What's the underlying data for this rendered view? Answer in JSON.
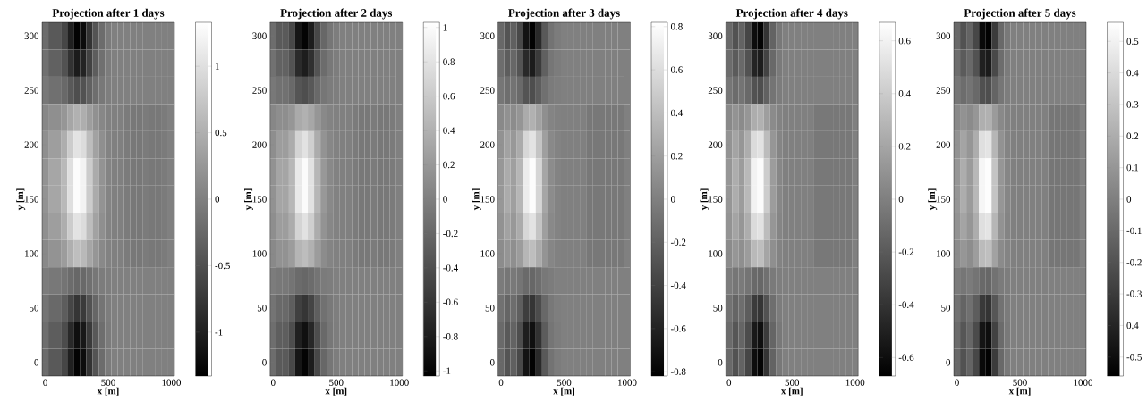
{
  "chart_data": [
    {
      "type": "heatmap",
      "title": "Projection after 1 days",
      "xlabel": "x [m]",
      "ylabel": "y [m]",
      "categories": [
        "0",
        null,
        null,
        null,
        null,
        null,
        null,
        null,
        null,
        null,
        "500",
        null,
        null,
        null,
        null,
        null,
        null,
        null,
        null,
        null,
        "1000"
      ],
      "y_categories": [
        "300",
        null,
        "250",
        null,
        "200",
        null,
        "150",
        null,
        "100",
        null,
        "50",
        null,
        "0"
      ],
      "cells": [
        [
          -0.2,
          -0.4,
          -0.4,
          -0.6,
          -1.0,
          -1.3,
          -1.2,
          -0.8,
          -0.45,
          -0.2,
          -0.05,
          0,
          0,
          0,
          0,
          0,
          0,
          0,
          0,
          0,
          0
        ],
        [
          -0.16,
          -0.32,
          -0.32,
          -0.48,
          -0.8,
          -1.04,
          -0.96,
          -0.64,
          -0.36,
          -0.16,
          -0.04,
          0,
          0,
          0,
          0,
          0,
          0,
          0,
          0,
          0,
          0
        ],
        [
          -0.08,
          -0.16,
          -0.16,
          -0.24,
          -0.4,
          -0.52,
          -0.48,
          -0.32,
          -0.18,
          -0.08,
          -0.02,
          0,
          0,
          0,
          0,
          0,
          0,
          0,
          0,
          0,
          0
        ],
        [
          0.08,
          0.16,
          0.16,
          0.24,
          0.4,
          0.52,
          0.48,
          0.32,
          0.18,
          0.08,
          0.02,
          0,
          0,
          -0.05,
          -0.08,
          -0.08,
          -0.05,
          -0.08,
          -0.08,
          -0.05,
          0
        ],
        [
          0.16,
          0.32,
          0.32,
          0.48,
          0.8,
          1.04,
          0.96,
          0.64,
          0.36,
          0.16,
          0.04,
          0,
          0,
          -0.05,
          -0.08,
          -0.08,
          -0.05,
          -0.08,
          -0.08,
          -0.05,
          0
        ],
        [
          0.2,
          0.4,
          0.4,
          0.6,
          1.0,
          1.3,
          1.2,
          0.8,
          0.45,
          0.2,
          0.05,
          0,
          0,
          -0.05,
          -0.08,
          -0.08,
          -0.05,
          -0.08,
          -0.08,
          -0.05,
          0
        ],
        [
          0.2,
          0.4,
          0.4,
          0.6,
          1.0,
          1.3,
          1.2,
          0.8,
          0.45,
          0.2,
          0.05,
          0,
          0,
          -0.05,
          -0.08,
          -0.08,
          -0.05,
          -0.08,
          -0.08,
          -0.05,
          0
        ],
        [
          0.16,
          0.32,
          0.32,
          0.48,
          0.8,
          1.04,
          0.96,
          0.64,
          0.36,
          0.16,
          0.04,
          0,
          0,
          -0.05,
          -0.08,
          -0.08,
          -0.05,
          -0.08,
          -0.08,
          -0.05,
          0
        ],
        [
          0.1,
          0.2,
          0.2,
          0.3,
          0.5,
          0.65,
          0.6,
          0.4,
          0.23,
          0.1,
          0.03,
          0,
          0,
          -0.05,
          -0.08,
          -0.08,
          -0.05,
          -0.08,
          -0.08,
          -0.05,
          0
        ],
        [
          -0.04,
          -0.08,
          -0.08,
          -0.12,
          -0.2,
          -0.26,
          -0.24,
          -0.16,
          -0.09,
          -0.04,
          -0.01,
          0,
          0,
          0,
          0,
          0,
          0,
          0,
          0,
          0,
          0
        ],
        [
          -0.12,
          -0.24,
          -0.24,
          -0.36,
          -0.6,
          -0.78,
          -0.72,
          -0.48,
          -0.27,
          -0.12,
          -0.03,
          0,
          0,
          0,
          0,
          0,
          0,
          0,
          0,
          0,
          0
        ],
        [
          -0.18,
          -0.36,
          -0.36,
          -0.54,
          -0.9,
          -1.17,
          -1.08,
          -0.72,
          -0.41,
          -0.18,
          -0.05,
          0,
          0,
          0,
          0,
          0,
          0,
          0,
          0,
          0,
          0
        ],
        [
          -0.2,
          -0.4,
          -0.4,
          -0.6,
          -1.0,
          -1.3,
          -1.2,
          -0.8,
          -0.45,
          -0.2,
          -0.05,
          0,
          0,
          0,
          0,
          0,
          0,
          0,
          0,
          0,
          0
        ]
      ],
      "clim": [
        -1.33,
        1.33
      ],
      "cticks": [
        -1,
        -0.5,
        0,
        0.5,
        1
      ]
    },
    {
      "type": "heatmap",
      "title": "Projection after 2 days",
      "xlabel": "x [m]",
      "ylabel": "y [m]",
      "categories": [
        "0",
        null,
        null,
        null,
        null,
        null,
        null,
        null,
        null,
        null,
        "500",
        null,
        null,
        null,
        null,
        null,
        null,
        null,
        null,
        null,
        "1000"
      ],
      "y_categories": [
        "300",
        null,
        "250",
        null,
        "200",
        null,
        "150",
        null,
        "100",
        null,
        "50",
        null,
        "0"
      ],
      "cells": [
        [
          -0.15,
          -0.3,
          -0.3,
          -0.45,
          -0.85,
          -1.0,
          -0.8,
          -0.45,
          -0.2,
          -0.08,
          -0.02,
          0,
          0,
          0,
          0,
          0,
          0,
          0,
          0,
          0,
          0
        ],
        [
          -0.12,
          -0.24,
          -0.24,
          -0.36,
          -0.68,
          -0.8,
          -0.64,
          -0.36,
          -0.16,
          -0.06,
          -0.02,
          0,
          0,
          0,
          0,
          0,
          0,
          0,
          0,
          0,
          0
        ],
        [
          -0.06,
          -0.12,
          -0.12,
          -0.18,
          -0.34,
          -0.4,
          -0.32,
          -0.18,
          -0.08,
          -0.03,
          -0.01,
          0,
          0,
          0,
          0,
          0,
          0,
          0,
          0,
          0,
          0
        ],
        [
          0.06,
          0.12,
          0.12,
          0.18,
          0.34,
          0.4,
          0.32,
          0.18,
          0.08,
          0.03,
          0.01,
          0,
          0,
          -0.04,
          -0.06,
          -0.06,
          -0.04,
          -0.06,
          -0.06,
          -0.04,
          0
        ],
        [
          0.12,
          0.24,
          0.24,
          0.36,
          0.68,
          0.8,
          0.64,
          0.36,
          0.16,
          0.06,
          0.02,
          0,
          0,
          -0.04,
          -0.06,
          -0.06,
          -0.04,
          -0.06,
          -0.06,
          -0.04,
          0
        ],
        [
          0.15,
          0.3,
          0.3,
          0.45,
          0.85,
          1.0,
          0.8,
          0.45,
          0.2,
          0.08,
          0.02,
          0,
          0,
          -0.04,
          -0.06,
          -0.06,
          -0.04,
          -0.06,
          -0.06,
          -0.04,
          0
        ],
        [
          0.15,
          0.3,
          0.3,
          0.45,
          0.85,
          1.0,
          0.8,
          0.45,
          0.2,
          0.08,
          0.02,
          0,
          0,
          -0.04,
          -0.06,
          -0.06,
          -0.04,
          -0.06,
          -0.06,
          -0.04,
          0
        ],
        [
          0.12,
          0.24,
          0.24,
          0.36,
          0.68,
          0.8,
          0.64,
          0.36,
          0.16,
          0.06,
          0.02,
          0,
          0,
          -0.04,
          -0.06,
          -0.06,
          -0.04,
          -0.06,
          -0.06,
          -0.04,
          0
        ],
        [
          0.08,
          0.15,
          0.15,
          0.23,
          0.43,
          0.5,
          0.4,
          0.23,
          0.1,
          0.04,
          0.01,
          0,
          0,
          -0.04,
          -0.06,
          -0.06,
          -0.04,
          -0.06,
          -0.06,
          -0.04,
          0
        ],
        [
          -0.03,
          -0.06,
          -0.06,
          -0.09,
          -0.17,
          -0.2,
          -0.16,
          -0.09,
          -0.04,
          -0.02,
          0,
          0,
          0,
          0,
          0,
          0,
          0,
          0,
          0,
          0,
          0
        ],
        [
          -0.09,
          -0.18,
          -0.18,
          -0.27,
          -0.51,
          -0.6,
          -0.48,
          -0.27,
          -0.12,
          -0.05,
          -0.01,
          0,
          0,
          0,
          0,
          0,
          0,
          0,
          0,
          0,
          0
        ],
        [
          -0.14,
          -0.27,
          -0.27,
          -0.41,
          -0.77,
          -0.9,
          -0.72,
          -0.41,
          -0.18,
          -0.07,
          -0.02,
          0,
          0,
          0,
          0,
          0,
          0,
          0,
          0,
          0,
          0
        ],
        [
          -0.15,
          -0.3,
          -0.3,
          -0.45,
          -0.85,
          -1.0,
          -0.8,
          -0.45,
          -0.2,
          -0.08,
          -0.02,
          0,
          0,
          0,
          0,
          0,
          0,
          0,
          0,
          0,
          0
        ]
      ],
      "clim": [
        -1.03,
        1.03
      ],
      "cticks": [
        -1,
        -0.8,
        -0.6,
        -0.4,
        -0.2,
        0,
        0.2,
        0.4,
        0.6,
        0.8,
        1
      ]
    },
    {
      "type": "heatmap",
      "title": "Projection after 3 days",
      "xlabel": "x [m]",
      "ylabel": "y [m]",
      "categories": [
        "0",
        null,
        null,
        null,
        null,
        null,
        null,
        null,
        null,
        null,
        "500",
        null,
        null,
        null,
        null,
        null,
        null,
        null,
        null,
        null,
        "1000"
      ],
      "y_categories": [
        "300",
        null,
        "250",
        null,
        "200",
        null,
        "150",
        null,
        "100",
        null,
        "50",
        null,
        "0"
      ],
      "cells": [
        [
          -0.15,
          -0.28,
          -0.2,
          -0.35,
          -0.7,
          -0.8,
          -0.55,
          -0.25,
          -0.08,
          -0.02,
          0,
          0,
          0,
          0,
          0,
          0,
          0,
          0,
          0,
          0,
          0
        ],
        [
          -0.12,
          -0.22,
          -0.16,
          -0.28,
          -0.56,
          -0.64,
          -0.44,
          -0.2,
          -0.06,
          -0.02,
          0,
          0,
          0,
          0,
          0,
          0,
          0,
          0,
          0,
          0,
          0
        ],
        [
          -0.06,
          -0.11,
          -0.08,
          -0.14,
          -0.28,
          -0.32,
          -0.22,
          -0.1,
          -0.03,
          -0.01,
          0,
          0,
          0,
          0,
          0,
          0,
          0,
          0,
          0,
          0,
          0
        ],
        [
          0.06,
          0.11,
          0.08,
          0.14,
          0.28,
          0.32,
          0.22,
          0.1,
          0.03,
          0.01,
          0,
          0,
          0,
          0,
          -0.05,
          -0.05,
          -0.05,
          -0.05,
          -0.05,
          -0.05,
          0
        ],
        [
          0.12,
          0.22,
          0.16,
          0.28,
          0.56,
          0.64,
          0.44,
          0.2,
          0.06,
          0.02,
          0,
          0,
          0,
          0,
          -0.05,
          -0.05,
          -0.05,
          -0.05,
          -0.05,
          -0.05,
          0
        ],
        [
          0.15,
          0.28,
          0.2,
          0.35,
          0.7,
          0.8,
          0.55,
          0.25,
          0.08,
          0.02,
          0,
          0,
          0,
          0,
          -0.05,
          -0.05,
          -0.05,
          -0.05,
          -0.05,
          -0.05,
          0
        ],
        [
          0.15,
          0.28,
          0.2,
          0.35,
          0.7,
          0.8,
          0.55,
          0.25,
          0.08,
          0.02,
          0,
          0,
          0,
          0,
          -0.05,
          -0.05,
          -0.05,
          -0.05,
          -0.05,
          -0.05,
          0
        ],
        [
          0.12,
          0.22,
          0.16,
          0.28,
          0.56,
          0.64,
          0.44,
          0.2,
          0.06,
          0.02,
          0,
          0,
          0,
          0,
          -0.05,
          -0.05,
          -0.05,
          -0.05,
          -0.05,
          -0.05,
          0
        ],
        [
          0.08,
          0.14,
          0.1,
          0.18,
          0.35,
          0.4,
          0.28,
          0.13,
          0.04,
          0.01,
          0,
          0,
          0,
          0,
          -0.05,
          -0.05,
          -0.05,
          -0.05,
          -0.05,
          -0.05,
          0
        ],
        [
          -0.03,
          -0.06,
          -0.04,
          -0.07,
          -0.14,
          -0.16,
          -0.11,
          -0.05,
          -0.02,
          0,
          0,
          0,
          0,
          0,
          0,
          0,
          0,
          0,
          0,
          0,
          0
        ],
        [
          -0.09,
          -0.17,
          -0.12,
          -0.21,
          -0.42,
          -0.48,
          -0.33,
          -0.15,
          -0.05,
          -0.01,
          0,
          0,
          0,
          0,
          0,
          0,
          0,
          0,
          0,
          0,
          0
        ],
        [
          -0.14,
          -0.25,
          -0.18,
          -0.32,
          -0.63,
          -0.72,
          -0.5,
          -0.23,
          -0.07,
          -0.02,
          0,
          0,
          0,
          0,
          0,
          0,
          0,
          0,
          0,
          0,
          0
        ],
        [
          -0.15,
          -0.28,
          -0.2,
          -0.35,
          -0.7,
          -0.8,
          -0.55,
          -0.25,
          -0.08,
          -0.02,
          0,
          0,
          0,
          0,
          0,
          0,
          0,
          0,
          0,
          0,
          0
        ]
      ],
      "clim": [
        -0.82,
        0.82
      ],
      "cticks": [
        -0.8,
        -0.6,
        -0.4,
        -0.2,
        0,
        0.2,
        0.4,
        0.6,
        0.8
      ]
    },
    {
      "type": "heatmap",
      "title": "Projection after 4 days",
      "xlabel": "x [m]",
      "ylabel": "y [m]",
      "categories": [
        "0",
        null,
        null,
        null,
        null,
        null,
        null,
        null,
        null,
        null,
        "500",
        null,
        null,
        null,
        null,
        null,
        null,
        null,
        null,
        null,
        "1000"
      ],
      "y_categories": [
        "300",
        null,
        "250",
        null,
        "200",
        null,
        "150",
        null,
        "100",
        null,
        "50",
        null,
        "0"
      ],
      "cells": [
        [
          -0.12,
          -0.24,
          -0.15,
          -0.3,
          -0.6,
          -0.65,
          -0.4,
          -0.15,
          -0.04,
          0,
          0,
          0,
          0,
          0,
          0,
          0,
          0,
          0,
          0,
          0,
          0
        ],
        [
          -0.1,
          -0.19,
          -0.12,
          -0.24,
          -0.48,
          -0.52,
          -0.32,
          -0.12,
          -0.03,
          0,
          0,
          0,
          0,
          0,
          0,
          0,
          0,
          0,
          0,
          0,
          0
        ],
        [
          -0.05,
          -0.1,
          -0.06,
          -0.12,
          -0.24,
          -0.26,
          -0.16,
          -0.06,
          -0.02,
          0,
          0,
          0,
          0,
          0,
          0,
          0,
          0,
          0,
          0,
          0,
          0
        ],
        [
          0.05,
          0.1,
          0.06,
          0.12,
          0.24,
          0.26,
          0.16,
          0.06,
          0.02,
          0,
          0,
          0,
          0,
          0,
          -0.04,
          -0.04,
          -0.04,
          -0.04,
          -0.04,
          -0.04,
          0
        ],
        [
          0.1,
          0.19,
          0.12,
          0.24,
          0.48,
          0.52,
          0.32,
          0.12,
          0.03,
          0,
          0,
          0,
          0,
          0,
          -0.04,
          -0.04,
          -0.04,
          -0.04,
          -0.04,
          -0.04,
          0
        ],
        [
          0.12,
          0.24,
          0.15,
          0.3,
          0.6,
          0.65,
          0.4,
          0.15,
          0.04,
          0,
          0,
          0,
          0,
          0,
          -0.04,
          -0.04,
          -0.04,
          -0.04,
          -0.04,
          -0.04,
          0
        ],
        [
          0.12,
          0.24,
          0.15,
          0.3,
          0.6,
          0.65,
          0.4,
          0.15,
          0.04,
          0,
          0,
          0,
          0,
          0,
          -0.04,
          -0.04,
          -0.04,
          -0.04,
          -0.04,
          -0.04,
          0
        ],
        [
          0.1,
          0.19,
          0.12,
          0.24,
          0.48,
          0.52,
          0.32,
          0.12,
          0.03,
          0,
          0,
          0,
          0,
          0,
          -0.04,
          -0.04,
          -0.04,
          -0.04,
          -0.04,
          -0.04,
          0
        ],
        [
          0.06,
          0.12,
          0.08,
          0.15,
          0.3,
          0.33,
          0.2,
          0.08,
          0.02,
          0,
          0,
          0,
          0,
          0,
          -0.04,
          -0.04,
          -0.04,
          -0.04,
          -0.04,
          -0.04,
          0
        ],
        [
          -0.02,
          -0.05,
          -0.03,
          -0.06,
          -0.12,
          -0.13,
          -0.08,
          -0.03,
          -0.01,
          0,
          0,
          0,
          0,
          0,
          0,
          0,
          0,
          0,
          0,
          0,
          0
        ],
        [
          -0.07,
          -0.14,
          -0.09,
          -0.18,
          -0.36,
          -0.39,
          -0.24,
          -0.09,
          -0.02,
          0,
          0,
          0,
          0,
          0,
          0,
          0,
          0,
          0,
          0,
          0,
          0
        ],
        [
          -0.11,
          -0.22,
          -0.14,
          -0.27,
          -0.54,
          -0.59,
          -0.36,
          -0.14,
          -0.04,
          0,
          0,
          0,
          0,
          0,
          0,
          0,
          0,
          0,
          0,
          0,
          0
        ],
        [
          -0.12,
          -0.24,
          -0.15,
          -0.3,
          -0.6,
          -0.65,
          -0.4,
          -0.15,
          -0.04,
          0,
          0,
          0,
          0,
          0,
          0,
          0,
          0,
          0,
          0,
          0,
          0
        ]
      ],
      "clim": [
        -0.67,
        0.67
      ],
      "cticks": [
        -0.6,
        -0.4,
        -0.2,
        0,
        0.2,
        0.4,
        0.6
      ]
    },
    {
      "type": "heatmap",
      "title": "Projection after 5 days",
      "xlabel": "x [m]",
      "ylabel": "y [m]",
      "categories": [
        "0",
        null,
        null,
        null,
        null,
        null,
        null,
        null,
        null,
        null,
        "500",
        null,
        null,
        null,
        null,
        null,
        null,
        null,
        null,
        null,
        "1000"
      ],
      "y_categories": [
        "300",
        null,
        "250",
        null,
        "200",
        null,
        "150",
        null,
        "100",
        null,
        "50",
        null,
        "0"
      ],
      "cells": [
        [
          -0.1,
          -0.2,
          -0.12,
          -0.25,
          -0.52,
          -0.55,
          -0.3,
          -0.1,
          -0.03,
          0,
          0,
          0,
          0,
          0,
          0,
          0,
          0,
          0,
          0,
          0,
          0
        ],
        [
          -0.08,
          -0.16,
          -0.1,
          -0.2,
          -0.42,
          -0.44,
          -0.24,
          -0.08,
          -0.02,
          0,
          0,
          0,
          0,
          0,
          0,
          0,
          0,
          0,
          0,
          0,
          0
        ],
        [
          -0.04,
          -0.08,
          -0.05,
          -0.1,
          -0.21,
          -0.22,
          -0.12,
          -0.04,
          -0.01,
          0,
          0,
          0,
          0,
          0,
          0,
          0,
          0,
          0,
          0,
          0,
          0
        ],
        [
          0.04,
          0.08,
          0.05,
          0.1,
          0.21,
          0.22,
          0.12,
          0.04,
          0.01,
          0,
          0,
          0,
          0,
          0,
          0,
          -0.04,
          -0.04,
          -0.04,
          -0.04,
          -0.04,
          0
        ],
        [
          0.08,
          0.16,
          0.1,
          0.2,
          0.42,
          0.44,
          0.24,
          0.08,
          0.02,
          0,
          0,
          0,
          0,
          0,
          0,
          -0.04,
          -0.04,
          -0.04,
          -0.04,
          -0.04,
          0
        ],
        [
          0.1,
          0.2,
          0.12,
          0.25,
          0.52,
          0.55,
          0.3,
          0.1,
          0.03,
          0,
          0,
          0,
          0,
          0,
          0,
          -0.04,
          -0.04,
          -0.04,
          -0.04,
          -0.04,
          0
        ],
        [
          0.1,
          0.2,
          0.12,
          0.25,
          0.52,
          0.55,
          0.3,
          0.1,
          0.03,
          0,
          0,
          0,
          0,
          0,
          0,
          -0.04,
          -0.04,
          -0.04,
          -0.04,
          -0.04,
          0
        ],
        [
          0.08,
          0.16,
          0.1,
          0.2,
          0.42,
          0.44,
          0.24,
          0.08,
          0.02,
          0,
          0,
          0,
          0,
          0,
          0,
          -0.04,
          -0.04,
          -0.04,
          -0.04,
          -0.04,
          0
        ],
        [
          0.05,
          0.1,
          0.06,
          0.13,
          0.26,
          0.28,
          0.15,
          0.05,
          0.02,
          0,
          0,
          0,
          0,
          0,
          0,
          -0.04,
          -0.04,
          -0.04,
          -0.04,
          -0.04,
          0
        ],
        [
          -0.02,
          -0.04,
          -0.02,
          -0.05,
          -0.1,
          -0.11,
          -0.06,
          -0.02,
          -0.01,
          0,
          0,
          0,
          0,
          0,
          0,
          0,
          0,
          0,
          0,
          0,
          0
        ],
        [
          -0.06,
          -0.12,
          -0.07,
          -0.15,
          -0.31,
          -0.33,
          -0.18,
          -0.06,
          -0.02,
          0,
          0,
          0,
          0,
          0,
          0,
          0,
          0,
          0,
          0,
          0,
          0
        ],
        [
          -0.09,
          -0.18,
          -0.11,
          -0.23,
          -0.47,
          -0.5,
          -0.27,
          -0.09,
          -0.03,
          0,
          0,
          0,
          0,
          0,
          0,
          0,
          0,
          0,
          0,
          0,
          0
        ],
        [
          -0.1,
          -0.2,
          -0.12,
          -0.25,
          -0.52,
          -0.55,
          -0.3,
          -0.1,
          -0.03,
          0,
          0,
          0,
          0,
          0,
          0,
          0,
          0,
          0,
          0,
          0,
          0
        ]
      ],
      "clim": [
        -0.56,
        0.56
      ],
      "cticks": [
        -0.5,
        {
          "value": -0.4,
          "label": "0.4"
        },
        -0.3,
        -0.2,
        -0.1,
        0,
        0.1,
        0.2,
        0.3,
        0.4,
        0.5
      ]
    }
  ]
}
